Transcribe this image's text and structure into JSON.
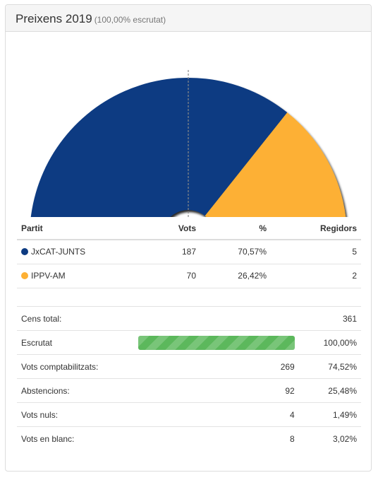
{
  "header": {
    "title": "Preixens 2019",
    "subtitle": "(100,00% escrutat)"
  },
  "chart_data": {
    "type": "pie",
    "shape": "hemicycle",
    "categories": [
      "JxCAT-JUNTS",
      "IPPV-AM"
    ],
    "values": [
      5,
      2
    ],
    "colors": [
      "#0d3b82",
      "#fdb034"
    ],
    "majority_line": true
  },
  "results": {
    "columns": {
      "party": "Partit",
      "votes": "Vots",
      "pct": "%",
      "seats": "Regidors"
    },
    "rows": [
      {
        "party": "JxCAT-JUNTS",
        "color": "#0d3b82",
        "votes": "187",
        "pct": "70,57%",
        "seats": "5"
      },
      {
        "party": "IPPV-AM",
        "color": "#fdb034",
        "votes": "70",
        "pct": "26,42%",
        "seats": "2"
      }
    ]
  },
  "stats": {
    "census": {
      "label": "Cens total:",
      "value": "361"
    },
    "counted": {
      "label": "Escrutat",
      "progress": 100,
      "value": "100,00%"
    },
    "valid": {
      "label": "Vots comptabilitzats:",
      "value": "269",
      "pct": "74,52%"
    },
    "abstentions": {
      "label": "Abstencions:",
      "value": "92",
      "pct": "25,48%"
    },
    "null": {
      "label": "Vots nuls:",
      "value": "4",
      "pct": "1,49%"
    },
    "blank": {
      "label": "Vots en blanc:",
      "value": "8",
      "pct": "3,02%"
    }
  }
}
